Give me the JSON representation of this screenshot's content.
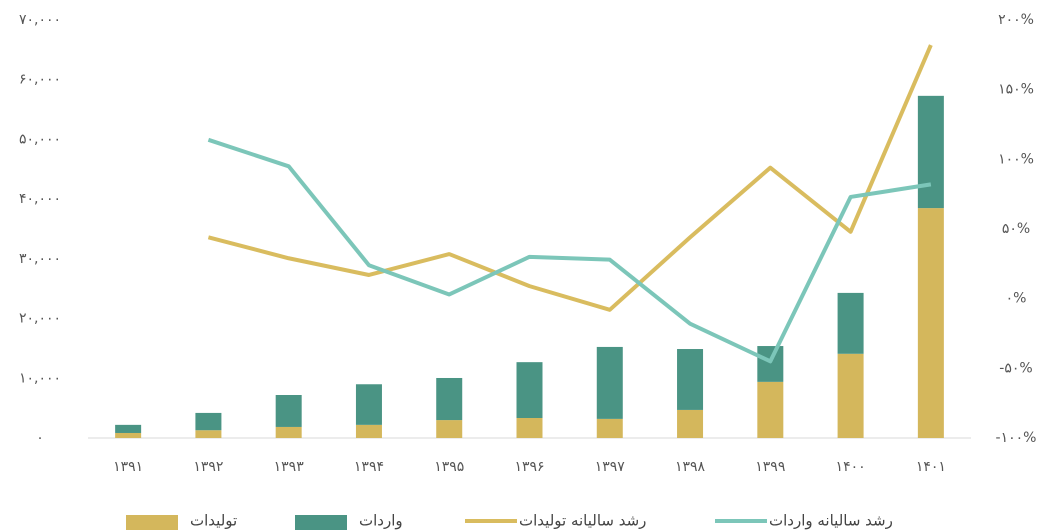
{
  "chart_data": {
    "type": "bar-line",
    "categories": [
      "۱۳۹۱",
      "۱۳۹۲",
      "۱۳۹۳",
      "۱۳۹۴",
      "۱۳۹۵",
      "۱۳۹۶",
      "۱۳۹۷",
      "۱۳۹۸",
      "۱۳۹۹",
      "۱۴۰۰",
      "۱۴۰۱"
    ],
    "series": [
      {
        "name": "تولیدات",
        "type": "bar",
        "color": "#d4b75c",
        "values": [
          840,
          1300,
          1850,
          2200,
          3000,
          3350,
          3200,
          4700,
          9400,
          14100,
          38500
        ]
      },
      {
        "name": "واردات",
        "type": "bar",
        "color": "#4a9484",
        "values": [
          1360,
          2900,
          5350,
          6800,
          7050,
          9350,
          12050,
          10200,
          6000,
          10200,
          18800
        ]
      },
      {
        "name": "رشد سالیانه تولیدات",
        "type": "line",
        "axis": "y2",
        "color": "#d9bc5f",
        "values": [
          null,
          44,
          29,
          17,
          32,
          9,
          -8,
          44,
          94,
          48,
          182
        ]
      },
      {
        "name": "رشد سالیانه واردات",
        "type": "line",
        "axis": "y2",
        "color": "#7cc6b9",
        "values": [
          null,
          114,
          95,
          24,
          3,
          30,
          28,
          -18,
          -45,
          73,
          82
        ]
      }
    ],
    "stacked": true,
    "ylim": [
      0,
      70000
    ],
    "yticks": [
      {
        "value": 0,
        "label": "۰"
      },
      {
        "value": 10000,
        "label": "۱۰,۰۰۰"
      },
      {
        "value": 20000,
        "label": "۲۰,۰۰۰"
      },
      {
        "value": 30000,
        "label": "۳۰,۰۰۰"
      },
      {
        "value": 40000,
        "label": "۴۰,۰۰۰"
      },
      {
        "value": 50000,
        "label": "۵۰,۰۰۰"
      },
      {
        "value": 60000,
        "label": "۶۰,۰۰۰"
      },
      {
        "value": 70000,
        "label": "۷۰,۰۰۰"
      }
    ],
    "y2lim": [
      -100,
      200
    ],
    "y2ticks": [
      {
        "value": -100,
        "label": "-۱۰۰%"
      },
      {
        "value": -50,
        "label": "-۵۰%"
      },
      {
        "value": 0,
        "label": "۰%"
      },
      {
        "value": 50,
        "label": "۵۰%"
      },
      {
        "value": 100,
        "label": "۱۰۰%"
      },
      {
        "value": 150,
        "label": "۱۵۰%"
      },
      {
        "value": 200,
        "label": "۲۰۰%"
      }
    ],
    "grid": false
  }
}
